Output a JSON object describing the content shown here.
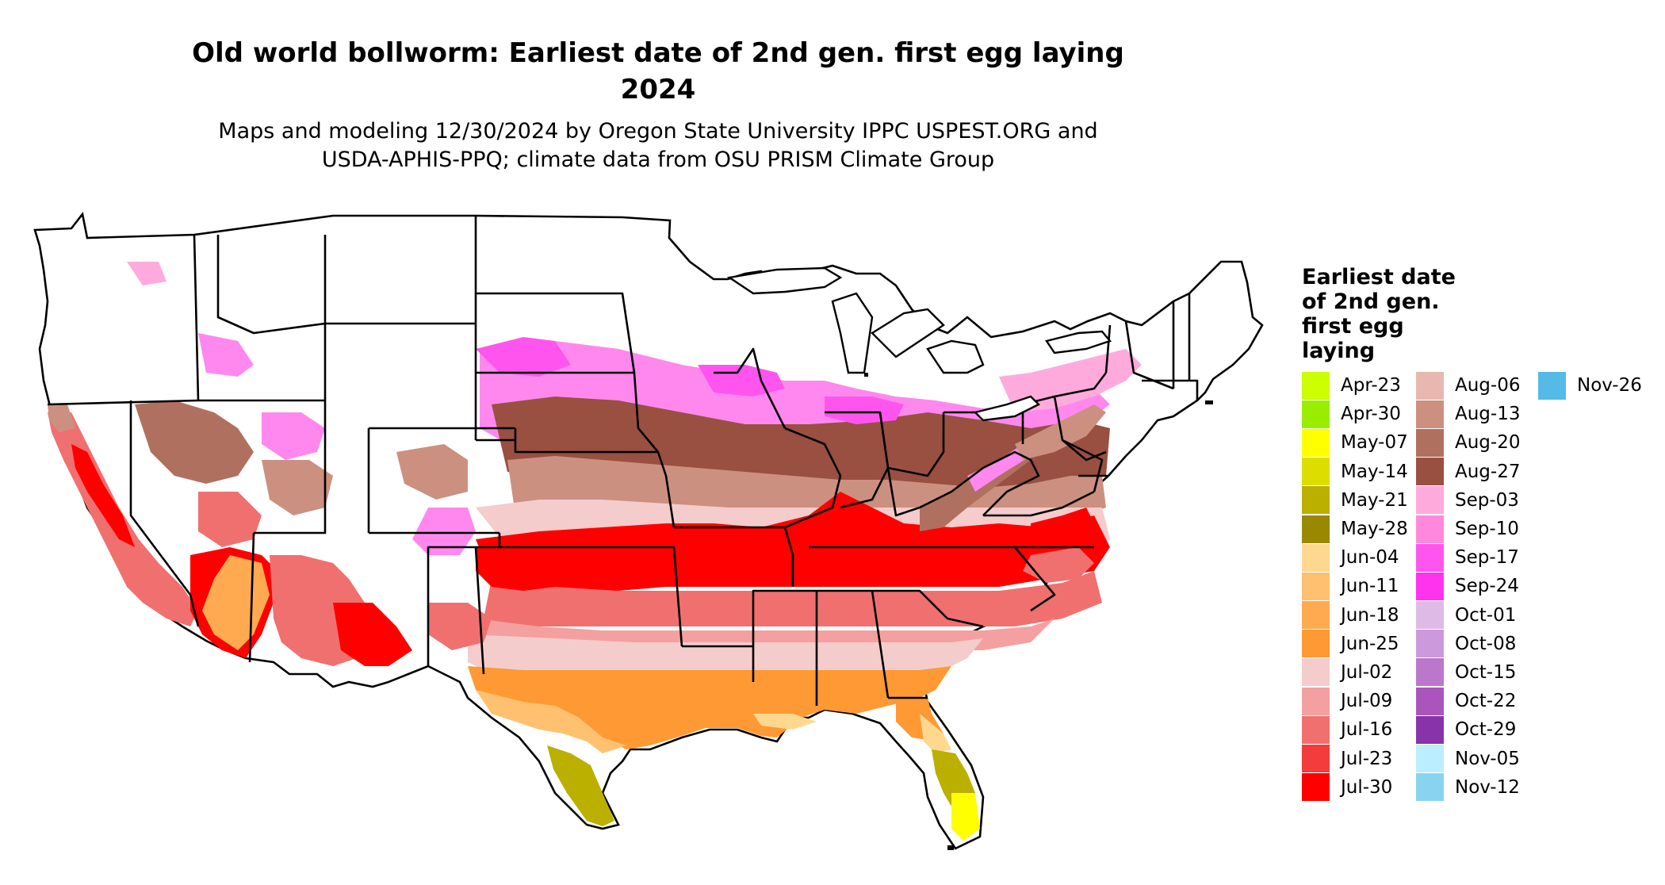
{
  "title_line1": "Old world bollworm: Earliest date of 2nd gen. first egg laying",
  "title_line2": "2024",
  "subtitle_line1": "Maps and modeling 12/30/2024 by Oregon State University IPPC USPEST.ORG and",
  "subtitle_line2": "USDA-APHIS-PPQ; climate data from OSU PRISM Climate Group",
  "legend": {
    "title_lines": [
      "Earliest date",
      "of 2nd gen.",
      "first egg",
      "laying"
    ],
    "items": [
      {
        "label": "Apr-23",
        "color": "#ccff00"
      },
      {
        "label": "Apr-30",
        "color": "#99ee00"
      },
      {
        "label": "May-07",
        "color": "#ffff00"
      },
      {
        "label": "May-14",
        "color": "#dddd00"
      },
      {
        "label": "May-21",
        "color": "#bbb000"
      },
      {
        "label": "May-28",
        "color": "#998800"
      },
      {
        "label": "Jun-04",
        "color": "#ffd890"
      },
      {
        "label": "Jun-11",
        "color": "#ffc070"
      },
      {
        "label": "Jun-18",
        "color": "#ffaa50"
      },
      {
        "label": "Jun-25",
        "color": "#ff9933"
      },
      {
        "label": "Jul-02",
        "color": "#f4cccc"
      },
      {
        "label": "Jul-09",
        "color": "#f4a0a0"
      },
      {
        "label": "Jul-16",
        "color": "#f07070"
      },
      {
        "label": "Jul-23",
        "color": "#f43c3c"
      },
      {
        "label": "Jul-30",
        "color": "#ff0000"
      },
      {
        "label": "Aug-06",
        "color": "#e8b8b0"
      },
      {
        "label": "Aug-13",
        "color": "#cc9080"
      },
      {
        "label": "Aug-20",
        "color": "#b07060"
      },
      {
        "label": "Aug-27",
        "color": "#995040"
      },
      {
        "label": "Sep-03",
        "color": "#ffaadd"
      },
      {
        "label": "Sep-10",
        "color": "#ff88dd"
      },
      {
        "label": "Sep-17",
        "color": "#ff55ee"
      },
      {
        "label": "Sep-24",
        "color": "#ff33ee"
      },
      {
        "label": "Oct-01",
        "color": "#ddbbe6"
      },
      {
        "label": "Oct-08",
        "color": "#cc99dd"
      },
      {
        "label": "Oct-15",
        "color": "#bb77cc"
      },
      {
        "label": "Oct-22",
        "color": "#aa55bb"
      },
      {
        "label": "Oct-29",
        "color": "#8833aa"
      },
      {
        "label": "Nov-05",
        "color": "#bbeeff"
      },
      {
        "label": "Nov-12",
        "color": "#88d4f0"
      },
      {
        "label": "Nov-26",
        "color": "#55bbe6"
      }
    ]
  }
}
